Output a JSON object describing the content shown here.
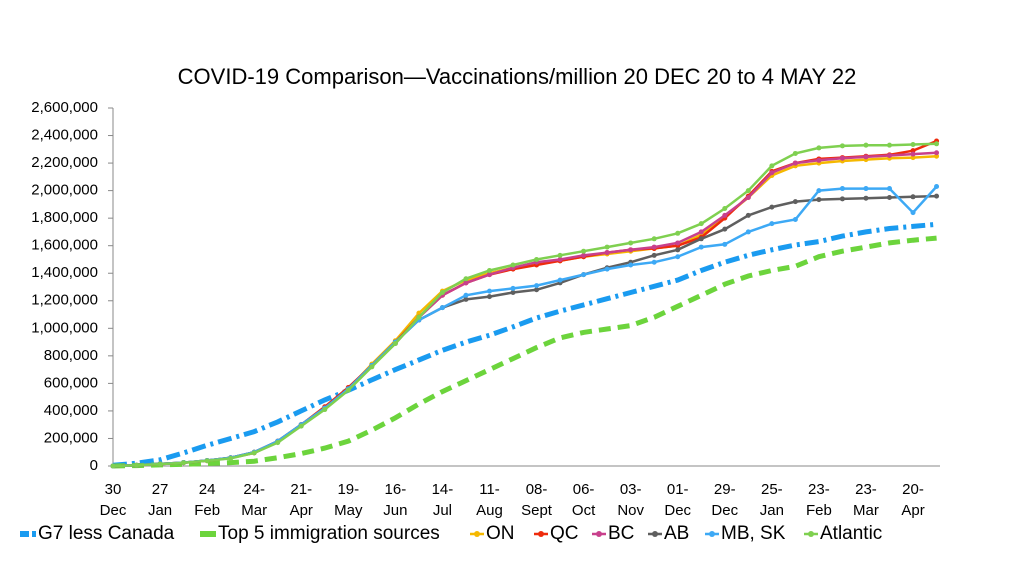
{
  "chart_data": {
    "type": "line",
    "title": "COVID-19 Comparison—Vaccinations/million 20 DEC 20 to 4 MAY 22",
    "categories": [
      "30\nDec",
      null,
      "27\nJan",
      null,
      "24\nFeb",
      null,
      "24-\nMar",
      null,
      "21-\nApr",
      null,
      "19-\nMay",
      null,
      "16-\nJun",
      null,
      "14-\nJul",
      null,
      "11-\nAug",
      null,
      "08-\nSept",
      null,
      "06-\nOct",
      null,
      "03-\nNov",
      null,
      "01-\nDec",
      null,
      "29-\nDec",
      null,
      "25-\nJan",
      null,
      "23-\nFeb",
      null,
      "23-\nMar",
      null,
      "20-\nApr",
      null
    ],
    "ylim": [
      0,
      2600000
    ],
    "yticks": [
      0,
      {
        "value": 200000,
        "label": "200,000"
      },
      {
        "value": 400000,
        "label": "400,000"
      },
      {
        "value": 600000,
        "label": "600,000"
      },
      {
        "value": 800000,
        "label": "800,000"
      },
      {
        "value": 1000000,
        "label": "1,000,000"
      },
      {
        "value": 1200000,
        "label": "1,200,000"
      },
      {
        "value": 1400000,
        "label": "1,400,000"
      },
      {
        "value": 1600000,
        "label": "1,600,000"
      },
      {
        "value": 1800000,
        "label": "1,800,000"
      },
      {
        "value": 2000000,
        "label": "2,000,000"
      },
      {
        "value": 2200000,
        "label": "2,200,000"
      },
      {
        "value": 2400000,
        "label": "2,400,000"
      },
      {
        "value": 2600000,
        "label": "2,600,000"
      }
    ],
    "grid": false,
    "legend": "bottom",
    "series": [
      {
        "name": "G7 less Canada",
        "color": "#1a9bf0",
        "style": "dashdot",
        "values": [
          5000,
          20000,
          45000,
          95000,
          150000,
          200000,
          250000,
          320000,
          400000,
          480000,
          550000,
          625000,
          700000,
          770000,
          840000,
          900000,
          950000,
          1010000,
          1075000,
          1125000,
          1170000,
          1215000,
          1260000,
          1305000,
          1350000,
          1420000,
          1480000,
          1530000,
          1570000,
          1605000,
          1630000,
          1670000,
          1700000,
          1725000,
          1740000,
          1755000
        ]
      },
      {
        "name": "Top 5 immigration sources",
        "color": "#6cd43c",
        "style": "dashed",
        "values": [
          0,
          3000,
          8000,
          12000,
          18000,
          25000,
          35000,
          60000,
          90000,
          130000,
          180000,
          260000,
          350000,
          450000,
          540000,
          620000,
          700000,
          780000,
          860000,
          930000,
          970000,
          995000,
          1020000,
          1080000,
          1160000,
          1240000,
          1320000,
          1380000,
          1420000,
          1450000,
          1520000,
          1560000,
          1590000,
          1620000,
          1640000,
          1655000
        ]
      },
      {
        "name": "ON",
        "color": "#f5b800",
        "style": "markers",
        "values": [
          0,
          5000,
          15000,
          25000,
          40000,
          60000,
          100000,
          180000,
          300000,
          420000,
          560000,
          740000,
          910000,
          1110000,
          1270000,
          1350000,
          1400000,
          1440000,
          1470000,
          1490000,
          1520000,
          1540000,
          1560000,
          1580000,
          1600000,
          1680000,
          1810000,
          1950000,
          2110000,
          2180000,
          2200000,
          2215000,
          2225000,
          2235000,
          2240000,
          2250000
        ]
      },
      {
        "name": "QC",
        "color": "#ee2b0c",
        "style": "markers",
        "values": [
          0,
          5000,
          14000,
          24000,
          38000,
          58000,
          95000,
          175000,
          300000,
          430000,
          570000,
          730000,
          900000,
          1080000,
          1240000,
          1330000,
          1390000,
          1430000,
          1460000,
          1490000,
          1520000,
          1550000,
          1570000,
          1580000,
          1600000,
          1660000,
          1800000,
          1960000,
          2140000,
          2200000,
          2230000,
          2240000,
          2250000,
          2260000,
          2290000,
          2360000
        ]
      },
      {
        "name": "BC",
        "color": "#c8408c",
        "style": "markers",
        "values": [
          0,
          5000,
          15000,
          25000,
          40000,
          60000,
          100000,
          180000,
          300000,
          420000,
          560000,
          730000,
          890000,
          1080000,
          1240000,
          1330000,
          1390000,
          1440000,
          1480000,
          1500000,
          1530000,
          1550000,
          1570000,
          1590000,
          1620000,
          1700000,
          1820000,
          1950000,
          2130000,
          2200000,
          2220000,
          2235000,
          2245000,
          2255000,
          2265000,
          2275000
        ]
      },
      {
        "name": "AB",
        "color": "#5f5f5f",
        "style": "markers",
        "values": [
          0,
          5000,
          15000,
          25000,
          40000,
          60000,
          100000,
          180000,
          300000,
          420000,
          560000,
          730000,
          900000,
          1060000,
          1150000,
          1210000,
          1230000,
          1260000,
          1280000,
          1330000,
          1390000,
          1440000,
          1480000,
          1530000,
          1570000,
          1650000,
          1720000,
          1820000,
          1880000,
          1920000,
          1935000,
          1940000,
          1945000,
          1950000,
          1955000,
          1960000
        ]
      },
      {
        "name": "MB, SK",
        "color": "#3da9f5",
        "style": "markers",
        "values": [
          0,
          5000,
          15000,
          25000,
          40000,
          60000,
          100000,
          180000,
          300000,
          420000,
          560000,
          730000,
          900000,
          1060000,
          1150000,
          1240000,
          1270000,
          1290000,
          1310000,
          1350000,
          1390000,
          1430000,
          1460000,
          1480000,
          1520000,
          1590000,
          1610000,
          1700000,
          1760000,
          1790000,
          2000000,
          2015000,
          2015000,
          2015000,
          1840000,
          2030000
        ]
      },
      {
        "name": "Atlantic",
        "color": "#7fd050",
        "style": "markers",
        "values": [
          0,
          5000,
          14000,
          24000,
          38000,
          55000,
          95000,
          170000,
          290000,
          410000,
          550000,
          720000,
          890000,
          1080000,
          1260000,
          1360000,
          1420000,
          1460000,
          1500000,
          1530000,
          1560000,
          1590000,
          1620000,
          1650000,
          1690000,
          1760000,
          1870000,
          2000000,
          2180000,
          2270000,
          2310000,
          2325000,
          2330000,
          2330000,
          2335000,
          2340000
        ]
      }
    ]
  }
}
